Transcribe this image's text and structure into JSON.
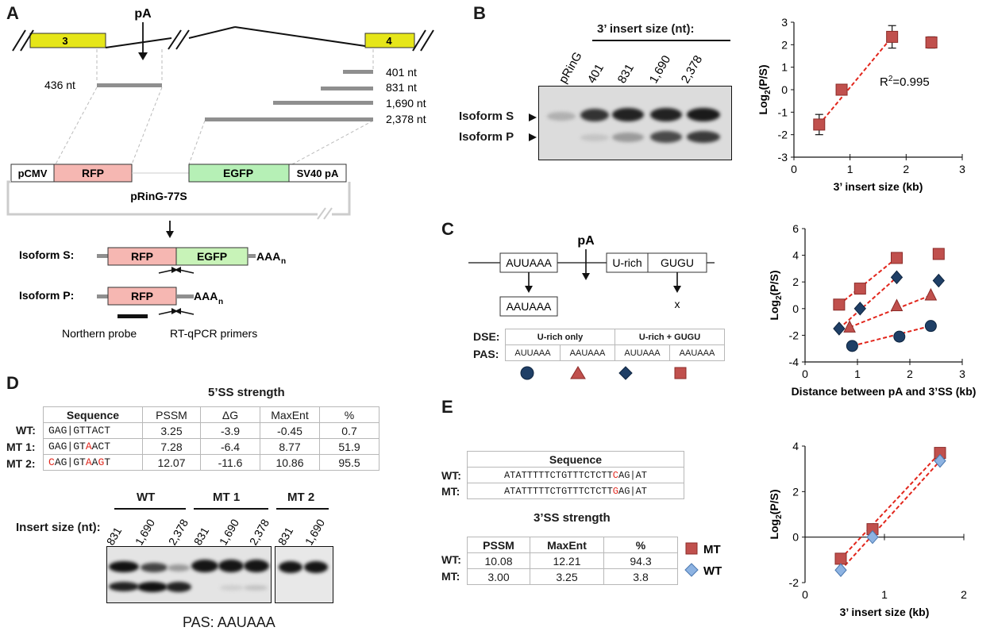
{
  "panels": {
    "A": "A",
    "B": "B",
    "C": "C",
    "D": "D",
    "E": "E"
  },
  "panelA": {
    "exon3": "3",
    "exon4": "4",
    "pA": "pA",
    "size_436": "436 nt",
    "size_401": "401 nt",
    "size_831": "831 nt",
    "size_1690": "1,690 nt",
    "size_2378": "2,378 nt",
    "pCMV": "pCMV",
    "RFP": "RFP",
    "EGFP": "EGFP",
    "SV40": "SV40 pA",
    "plasmid": "pRinG-77S",
    "isoS_label": "Isoform S:",
    "isoP_label": "Isoform P:",
    "aaa": "AAA",
    "aaa_sub": "n",
    "northern": "Northern probe",
    "rtqpcr": "RT-qPCR primers"
  },
  "panelB": {
    "insert_header": "3’ insert size (nt):",
    "lanes": [
      "pRinG",
      "401",
      "831",
      "1,690",
      "2,378"
    ],
    "isoS": "Isoform S",
    "isoP": "Isoform P",
    "chart_data": {
      "type": "scatter",
      "xlabel": "3’ insert size (kb)",
      "ylabel": "Log2(P/S)",
      "xlim": [
        0,
        3
      ],
      "ylim": [
        -3,
        3
      ],
      "xticks": [
        "0",
        "1",
        "2",
        "3"
      ],
      "yticks": [
        "-3",
        "-2",
        "-1",
        "0",
        "1",
        "2",
        "3"
      ],
      "x": [
        0.45,
        0.85,
        1.75,
        2.45
      ],
      "y": [
        -1.55,
        0.0,
        2.35,
        2.1
      ],
      "err": [
        0.45,
        0.1,
        0.5,
        0.25
      ],
      "fit_points": [
        [
          0.45,
          -1.55
        ],
        [
          1.75,
          2.35
        ]
      ],
      "annotation": "R",
      "annotation_sup": "2",
      "annotation_rest": "=0.995"
    }
  },
  "panelC": {
    "AUUAAA": "AUUAAA",
    "AAUAAA": "AAUAAA",
    "pA": "pA",
    "Urich": "U-rich",
    "GUGU": "GUGU",
    "x": "x",
    "dse_label": "DSE:",
    "pas_label": "PAS:",
    "dse_u": "U-rich only",
    "dse_ug": "U-rich + GUGU",
    "pas_cols": [
      "AUUAAA",
      "AAUAAA",
      "AUUAAA",
      "AAUAAA"
    ],
    "chart_data": {
      "type": "scatter",
      "xlabel": "Distance between pA and 3’SS (kb)",
      "ylabel": "Log2(P/S)",
      "xlim": [
        0,
        3
      ],
      "ylim": [
        -4,
        6
      ],
      "xticks": [
        "0",
        "1",
        "2",
        "3"
      ],
      "yticks": [
        "-4",
        "-2",
        "0",
        "2",
        "4",
        "6"
      ],
      "series": [
        {
          "marker": "circle",
          "x": [
            0.9,
            1.8,
            2.4
          ],
          "y": [
            -2.8,
            -2.1,
            -1.3
          ]
        },
        {
          "marker": "triangle",
          "x": [
            0.85,
            1.75,
            2.4
          ],
          "y": [
            -1.4,
            0.2,
            1.0
          ]
        },
        {
          "marker": "diamond",
          "x": [
            0.65,
            1.05,
            1.75,
            2.55
          ],
          "y": [
            -1.5,
            0.0,
            2.35,
            2.1
          ]
        },
        {
          "marker": "square",
          "x": [
            0.65,
            1.05,
            1.75,
            2.55
          ],
          "y": [
            0.3,
            1.5,
            3.8,
            4.1
          ]
        }
      ],
      "fits": [
        {
          "from": [
            0.9,
            -2.8
          ],
          "to": [
            2.4,
            -1.3
          ]
        },
        {
          "from": [
            0.85,
            -1.4
          ],
          "to": [
            2.4,
            1.0
          ]
        },
        {
          "from": [
            0.65,
            -1.5
          ],
          "to": [
            1.75,
            2.35
          ]
        },
        {
          "from": [
            0.65,
            0.3
          ],
          "to": [
            1.75,
            3.8
          ]
        }
      ]
    }
  },
  "panelD": {
    "title": "5’SS strength",
    "headers": [
      "Sequence",
      "PSSM",
      "ΔG",
      "MaxEnt",
      "%"
    ],
    "rows": [
      {
        "label": "WT:",
        "seq_a": "GAG|GTTACT",
        "seq_b": "",
        "seq_c": "",
        "seq_d": "",
        "pssm": "3.25",
        "dg": "-3.9",
        "maxent": "-0.45",
        "pct": "0.7"
      },
      {
        "label": "MT 1:",
        "seq_a": "GAG|GT",
        "seq_b": "A",
        "seq_c": "ACT",
        "seq_d": "",
        "pssm": "7.28",
        "dg": "-6.4",
        "maxent": "8.77",
        "pct": "51.9"
      },
      {
        "label": "MT 2:",
        "seq_a": "C",
        "seq_b": "AG|GT",
        "seq_c": "A",
        "seq_d": "A",
        "seq_e": "G",
        "seq_f": "T",
        "pssm": "12.07",
        "dg": "-11.6",
        "maxent": "10.86",
        "pct": "95.5"
      }
    ],
    "groups": [
      "WT",
      "MT 1",
      "MT 2"
    ],
    "insert_label": "Insert size (nt):",
    "lanes": [
      "831",
      "1,690",
      "2,378",
      "831",
      "1,690",
      "2,378",
      "831",
      "1,690"
    ],
    "pas": "PAS: AAUAAA"
  },
  "panelE": {
    "seq_header": "Sequence",
    "wt_label": "WT:",
    "mt_label": "MT:",
    "wt_a": "ATATTTTTCTGTTTCTCTT",
    "wt_b": "C",
    "wt_c": "AG|AT",
    "mt_a": "ATATTTTTCTGTTTCTCTT",
    "mt_b": "G",
    "mt_c": "AG|AT",
    "title3": "3’SS strength",
    "headers": [
      "PSSM",
      "MaxEnt",
      "%"
    ],
    "wt_vals": [
      "10.08",
      "12.21",
      "94.3"
    ],
    "mt_vals": [
      "3.00",
      "3.25",
      "3.8"
    ],
    "legend_mt": "MT",
    "legend_wt": "WT",
    "chart_data": {
      "type": "scatter",
      "xlabel": "3’ insert size (kb)",
      "ylabel": "Log2(P/S)",
      "xlim": [
        0,
        2
      ],
      "ylim": [
        -2,
        4
      ],
      "xticks": [
        "0",
        "1",
        "2"
      ],
      "yticks": [
        "-2",
        "0",
        "2",
        "4"
      ],
      "series": [
        {
          "name": "MT",
          "marker": "square",
          "x": [
            0.45,
            0.85,
            1.7
          ],
          "y": [
            -0.95,
            0.35,
            3.7
          ]
        },
        {
          "name": "WT",
          "marker": "diamond",
          "x": [
            0.45,
            0.85,
            1.7
          ],
          "y": [
            -1.45,
            0.0,
            3.35
          ]
        }
      ]
    }
  },
  "colors": {
    "red_marker": "#c0504d",
    "red_edge": "#8b2b28",
    "navy": "#1f3f66",
    "wt_diamond": "#8db3e2",
    "exon_yellow": "#e6e619",
    "rfp": "#f6b7b2",
    "egfp": "#b6f0b6",
    "fit_red": "#e2261c"
  }
}
